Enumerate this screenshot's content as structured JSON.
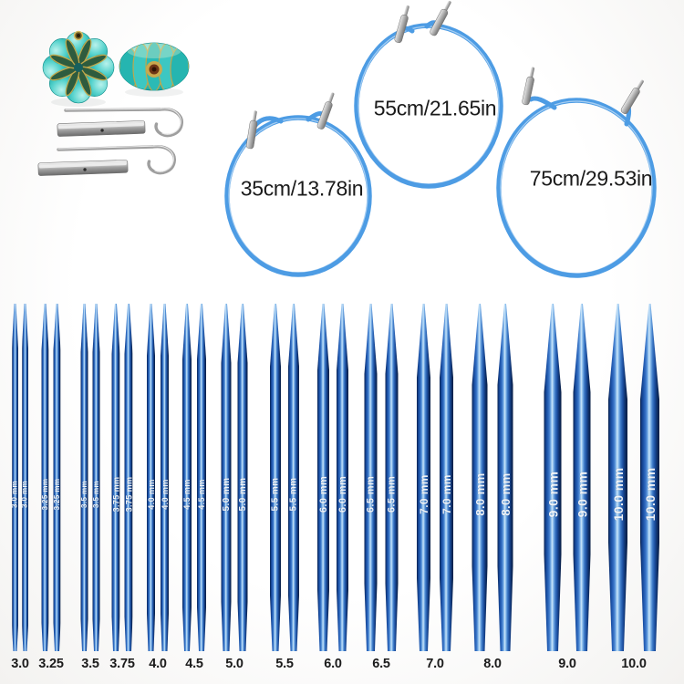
{
  "colors": {
    "background": "#fbfbf9",
    "needle_blue_dark": "#0a2552",
    "needle_blue_mid": "#2e6bbd",
    "needle_blue_highlight": "#cfe8fa",
    "cable_blue": "#4d9ce4",
    "metal_gray": "#a8a8a8",
    "stopper_teal": "#2fbdba",
    "stopper_gold": "#bfa74b",
    "label_text": "#1a1a1a"
  },
  "accessories": {
    "flower_stopper_front": "flower-end-stopper-front-view",
    "flower_stopper_side": "flower-end-stopper-side-view",
    "cable_key_1": "cable-key-hook-pin",
    "cable_key_2": "cable-key-hook-pin",
    "connector_tube_1": "cable-connector-tube",
    "connector_tube_2": "cable-connector-tube"
  },
  "cables": [
    {
      "name": "cable-35cm",
      "label": "35cm/13.78in"
    },
    {
      "name": "cable-55cm",
      "label": "55cm/21.65in"
    },
    {
      "name": "cable-75cm",
      "label": "75cm/29.53in"
    }
  ],
  "needles": {
    "tips_per_size": 2,
    "unit": "mm",
    "sizes": [
      {
        "size_label": "3.0",
        "shaft_text": "3.0 mm",
        "mm": 3.0
      },
      {
        "size_label": "3.25",
        "shaft_text": "3.25 mm",
        "mm": 3.25
      },
      {
        "size_label": "3.5",
        "shaft_text": "3.5 mm",
        "mm": 3.5
      },
      {
        "size_label": "3.75",
        "shaft_text": "3.75 mm",
        "mm": 3.75
      },
      {
        "size_label": "4.0",
        "shaft_text": "4.0 mm",
        "mm": 4.0
      },
      {
        "size_label": "4.5",
        "shaft_text": "4.5 mm",
        "mm": 4.5
      },
      {
        "size_label": "5.0",
        "shaft_text": "5.0 mm",
        "mm": 5.0
      },
      {
        "size_label": "5.5",
        "shaft_text": "5.5 mm",
        "mm": 5.5
      },
      {
        "size_label": "6.0",
        "shaft_text": "6.0 mm",
        "mm": 6.0
      },
      {
        "size_label": "6.5",
        "shaft_text": "6.5 mm",
        "mm": 6.5
      },
      {
        "size_label": "7.0",
        "shaft_text": "7.0 mm",
        "mm": 7.0
      },
      {
        "size_label": "8.0",
        "shaft_text": "8.0 mm",
        "mm": 8.0
      },
      {
        "size_label": "9.0",
        "shaft_text": "9.0 mm",
        "mm": 9.0
      },
      {
        "size_label": "10.0",
        "shaft_text": "10.0 mm",
        "mm": 10.0
      }
    ]
  }
}
